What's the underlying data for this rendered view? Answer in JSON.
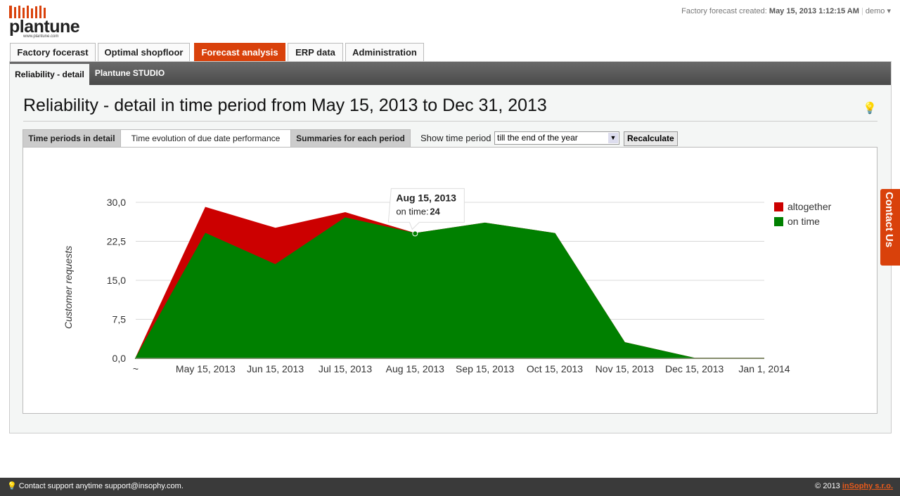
{
  "header": {
    "logo": "plantune",
    "logo_url": "www.plantune.com",
    "forecast_label": "Factory forecast created:",
    "forecast_date": "May 15, 2013 1:12:15 AM",
    "user": "demo"
  },
  "tabs": [
    {
      "label": "Factory focerast"
    },
    {
      "label": "Optimal shopfloor"
    },
    {
      "label": "Forecast analysis",
      "active": true
    },
    {
      "label": "ERP data"
    },
    {
      "label": "Administration"
    }
  ],
  "subtabs": [
    {
      "label": "Reliability - detail",
      "active": true
    },
    {
      "label": "Plantune STUDIO"
    }
  ],
  "page_title": "Reliability - detail in time period from May 15, 2013 to Dec 31, 2013",
  "inner_tabs": [
    {
      "label": "Time periods in detail"
    },
    {
      "label": "Time evolution of due date performance",
      "active": true
    },
    {
      "label": "Summaries for each period"
    }
  ],
  "period": {
    "label": "Show time period",
    "selected": "till the end of the year",
    "button": "Recalculate"
  },
  "chart_data": {
    "type": "area",
    "y_label": "Customer requests",
    "categories": [
      "~",
      "May 15, 2013",
      "Jun 15, 2013",
      "Jul 15, 2013",
      "Aug 15, 2013",
      "Sep 15, 2013",
      "Oct 15, 2013",
      "Nov 15, 2013",
      "Dec 15, 2013",
      "Jan 1, 2014"
    ],
    "series": [
      {
        "name": "altogether",
        "color": "#cc0000",
        "values": [
          0,
          29,
          25,
          28,
          24,
          26,
          24,
          3,
          0,
          0
        ]
      },
      {
        "name": "on time",
        "color": "#008000",
        "values": [
          0,
          24,
          18,
          27,
          24,
          26,
          24,
          3,
          0,
          0
        ]
      }
    ],
    "ylim": [
      0,
      30
    ],
    "yticks": [
      {
        "value": 0,
        "label": "0,0"
      },
      {
        "value": 7.5,
        "label": "7,5"
      },
      {
        "value": 15,
        "label": "15,0"
      },
      {
        "value": 22.5,
        "label": "22,5"
      },
      {
        "value": 30,
        "label": "30,0"
      }
    ],
    "grid": true,
    "legend": "top-right",
    "tooltip": {
      "category": "Aug 15, 2013",
      "label": "on time:",
      "value": 24
    }
  },
  "contact_tab": "Contact Us",
  "footer": {
    "support": "Contact support anytime support@insophy.com.",
    "copyright": "© 2013",
    "company": "inSophy s.r.o."
  }
}
